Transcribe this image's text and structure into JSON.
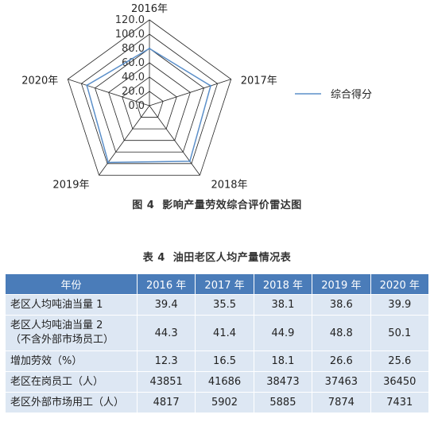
{
  "figure": {
    "caption_number": "图 4",
    "caption_text": "影响产量劳效综合评价雷达图"
  },
  "chart_data": {
    "type": "radar",
    "axes": [
      "2016年",
      "2017年",
      "2018年",
      "2019年",
      "2020年"
    ],
    "radial_ticks": [
      "0.0",
      "20.0",
      "40.0",
      "60.0",
      "80.0",
      "100.0",
      "120.0"
    ],
    "rmax": 120,
    "series": [
      {
        "name": "综合得分",
        "values": [
          80,
          90,
          96,
          98,
          92
        ],
        "color": "#5b8fc9"
      }
    ],
    "legend_position": "right",
    "grid_color": "#222222"
  },
  "table": {
    "caption_number": "表 4",
    "caption_text": "油田老区人均产量情况表",
    "header": [
      "年份",
      "2016 年",
      "2017 年",
      "2018 年",
      "2019 年",
      "2020 年"
    ],
    "rows": [
      {
        "label": "老区人均吨油当量 1",
        "label_line2": "",
        "values": [
          "39.4",
          "35.5",
          "38.1",
          "38.6",
          "39.9"
        ]
      },
      {
        "label": "老区人均吨油当量 2",
        "label_line2": "（不含外部市场员工）",
        "values": [
          "44.3",
          "41.4",
          "44.9",
          "48.8",
          "50.1"
        ]
      },
      {
        "label": "增加劳效（%）",
        "label_line2": "",
        "values": [
          "12.3",
          "16.5",
          "18.1",
          "26.6",
          "25.6"
        ]
      },
      {
        "label": "老区在岗员工（人）",
        "label_line2": "",
        "values": [
          "43851",
          "41686",
          "38473",
          "37463",
          "36450"
        ]
      },
      {
        "label": "老区外部市场用工（人）",
        "label_line2": "",
        "values": [
          "4817",
          "5902",
          "5885",
          "7874",
          "7431"
        ]
      }
    ],
    "header_bg": "#4a7cb9",
    "cell_bg": "#dde7f3"
  }
}
